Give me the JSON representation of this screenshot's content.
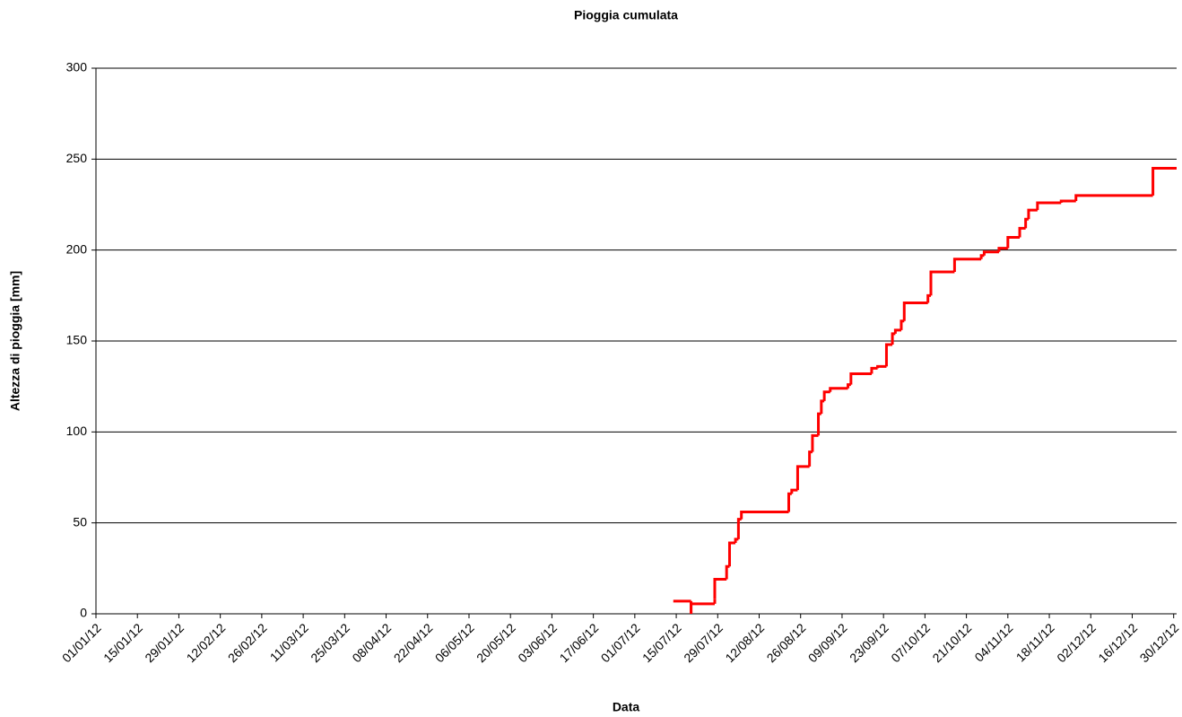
{
  "chart_data": {
    "type": "line",
    "title": "Pioggia cumulata",
    "xlabel": "Data",
    "ylabel": "Altezza di pioggia [mm]",
    "step": true,
    "grid": true,
    "series": [
      {
        "name": "Pioggia cumulata",
        "color": "#ff0000",
        "x": [
          "14/07/12",
          "20/07/12",
          "20/07/12",
          "28/07/12",
          "28/07/12",
          "01/08/12",
          "02/08/12",
          "04/08/12",
          "05/08/12",
          "06/08/12",
          "22/08/12",
          "23/08/12",
          "25/08/12",
          "29/08/12",
          "30/08/12",
          "01/09/12",
          "02/09/12",
          "03/09/12",
          "05/09/12",
          "11/09/12",
          "12/09/12",
          "19/09/12",
          "21/09/12",
          "24/09/12",
          "26/09/12",
          "27/09/12",
          "29/09/12",
          "30/09/12",
          "08/10/12",
          "09/10/12",
          "17/10/12",
          "26/10/12",
          "27/10/12",
          "01/11/12",
          "04/11/12",
          "08/11/12",
          "10/11/12",
          "11/11/12",
          "14/11/12",
          "22/11/12",
          "27/11/12",
          "23/12/12",
          "31/12/12"
        ],
        "values": [
          7,
          0,
          5.5,
          8,
          19,
          26,
          39,
          41,
          52,
          56,
          66,
          68,
          81,
          89,
          98,
          110,
          117,
          122,
          124,
          126,
          132,
          135,
          136,
          148,
          154,
          156,
          161,
          171,
          175,
          188,
          195,
          197,
          199,
          201,
          207,
          212,
          217,
          222,
          226,
          227,
          230,
          245,
          245
        ]
      }
    ],
    "xlim": [
      "01/01/12",
      "31/12/12"
    ],
    "xticks": [
      "01/01/12",
      "15/01/12",
      "29/01/12",
      "12/02/12",
      "26/02/12",
      "11/03/12",
      "25/03/12",
      "08/04/12",
      "22/04/12",
      "06/05/12",
      "20/05/12",
      "03/06/12",
      "17/06/12",
      "01/07/12",
      "15/07/12",
      "29/07/12",
      "12/08/12",
      "26/08/12",
      "09/09/12",
      "23/09/12",
      "07/10/12",
      "21/10/12",
      "04/11/12",
      "18/11/12",
      "02/12/12",
      "16/12/12",
      "30/12/12"
    ],
    "ylim": [
      0,
      300
    ],
    "yticks": [
      0,
      50,
      100,
      150,
      200,
      250,
      300
    ]
  }
}
